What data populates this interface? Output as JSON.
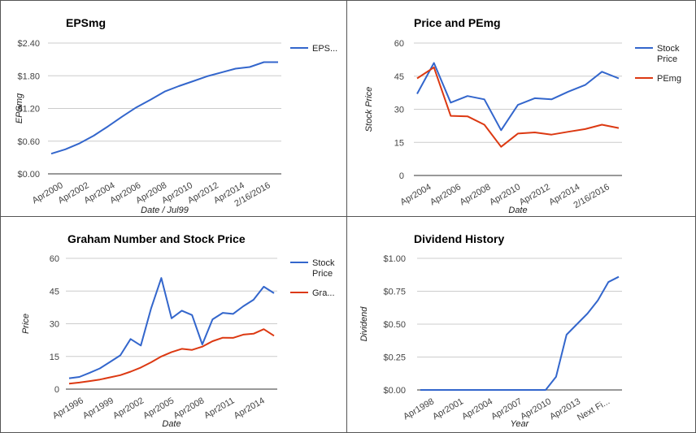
{
  "chart_data": [
    {
      "id": "eps",
      "type": "line",
      "title": "EPSmg",
      "xlabel": "Date / Jul99",
      "ylabel": "EPSmg",
      "x_ticks": [
        "Apr2000",
        "Apr2002",
        "Apr2004",
        "Apr2006",
        "Apr2008",
        "Apr2010",
        "Apr2012",
        "Apr2014",
        "2/16/2016"
      ],
      "y_ticks": [
        "$0.00",
        "$0.60",
        "$1.20",
        "$1.80",
        "$2.40"
      ],
      "ylim": [
        0,
        2.4
      ],
      "grid": true,
      "legend_position": "right",
      "series": [
        {
          "name": "EPS...",
          "color": "#3366cc",
          "values": [
            0.37,
            0.45,
            0.56,
            0.7,
            0.87,
            1.05,
            1.22,
            1.36,
            1.51,
            1.61,
            1.7,
            1.79,
            1.86,
            1.93,
            1.96,
            2.05,
            2.05
          ]
        }
      ]
    },
    {
      "id": "price_pe",
      "type": "line",
      "title": "Price and PEmg",
      "xlabel": "Date",
      "ylabel": "Stock Price",
      "x_ticks": [
        "Apr2004",
        "Apr2006",
        "Apr2008",
        "Apr2010",
        "Apr2012",
        "Apr2014",
        "2/16/2016"
      ],
      "y_ticks": [
        "0",
        "15",
        "30",
        "45",
        "60"
      ],
      "ylim": [
        0,
        60
      ],
      "grid": true,
      "legend_position": "right",
      "series": [
        {
          "name": "Stock Price",
          "color": "#3366cc",
          "values": [
            37,
            51,
            33,
            36,
            34.5,
            20.5,
            32,
            35,
            34.5,
            38,
            41,
            47,
            44
          ]
        },
        {
          "name": "PEmg",
          "color": "#dc3912",
          "values": [
            44,
            49,
            27,
            26.8,
            23,
            13,
            19,
            19.5,
            18.5,
            19.8,
            21,
            23,
            21.5
          ]
        }
      ]
    },
    {
      "id": "graham",
      "type": "line",
      "title": "Graham Number and Stock Price",
      "xlabel": "Date",
      "ylabel": "Price",
      "x_ticks": [
        "Apr1996",
        "Apr1999",
        "Apr2002",
        "Apr2005",
        "Apr2008",
        "Apr2011",
        "Apr2014"
      ],
      "y_ticks": [
        "0",
        "15",
        "30",
        "45",
        "60"
      ],
      "ylim": [
        0,
        60
      ],
      "grid": true,
      "legend_position": "right",
      "series": [
        {
          "name": "Stock Price",
          "color": "#3366cc",
          "values": [
            5,
            5.6,
            7.5,
            9.5,
            12.5,
            15.5,
            23,
            20,
            37,
            51,
            32.5,
            36,
            34,
            20.5,
            32,
            35,
            34.5,
            38,
            41,
            47,
            44
          ]
        },
        {
          "name": "Gra...",
          "color": "#dc3912",
          "values": [
            2.5,
            3,
            3.7,
            4.4,
            5.4,
            6.4,
            8,
            9.9,
            12.3,
            15,
            17,
            18.5,
            18,
            19.5,
            22,
            23.6,
            23.5,
            25,
            25.4,
            27.5,
            24.5
          ]
        }
      ]
    },
    {
      "id": "dividend",
      "type": "line",
      "title": "Dividend History",
      "xlabel": "Year",
      "ylabel": "Dividend",
      "x_ticks": [
        "Apr1998",
        "Apr2001",
        "Apr2004",
        "Apr2007",
        "Apr2010",
        "Apr2013",
        "Next Fi..."
      ],
      "y_ticks": [
        "$0.00",
        "$0.25",
        "$0.50",
        "$0.75",
        "$1.00"
      ],
      "ylim": [
        0,
        1
      ],
      "grid": true,
      "legend_position": "none",
      "series": [
        {
          "name": "",
          "color": "#3366cc",
          "values": [
            0,
            0,
            0,
            0,
            0,
            0,
            0,
            0,
            0,
            0,
            0,
            0,
            0,
            0.1,
            0.42,
            0.5,
            0.58,
            0.68,
            0.82,
            0.86
          ]
        }
      ]
    }
  ]
}
